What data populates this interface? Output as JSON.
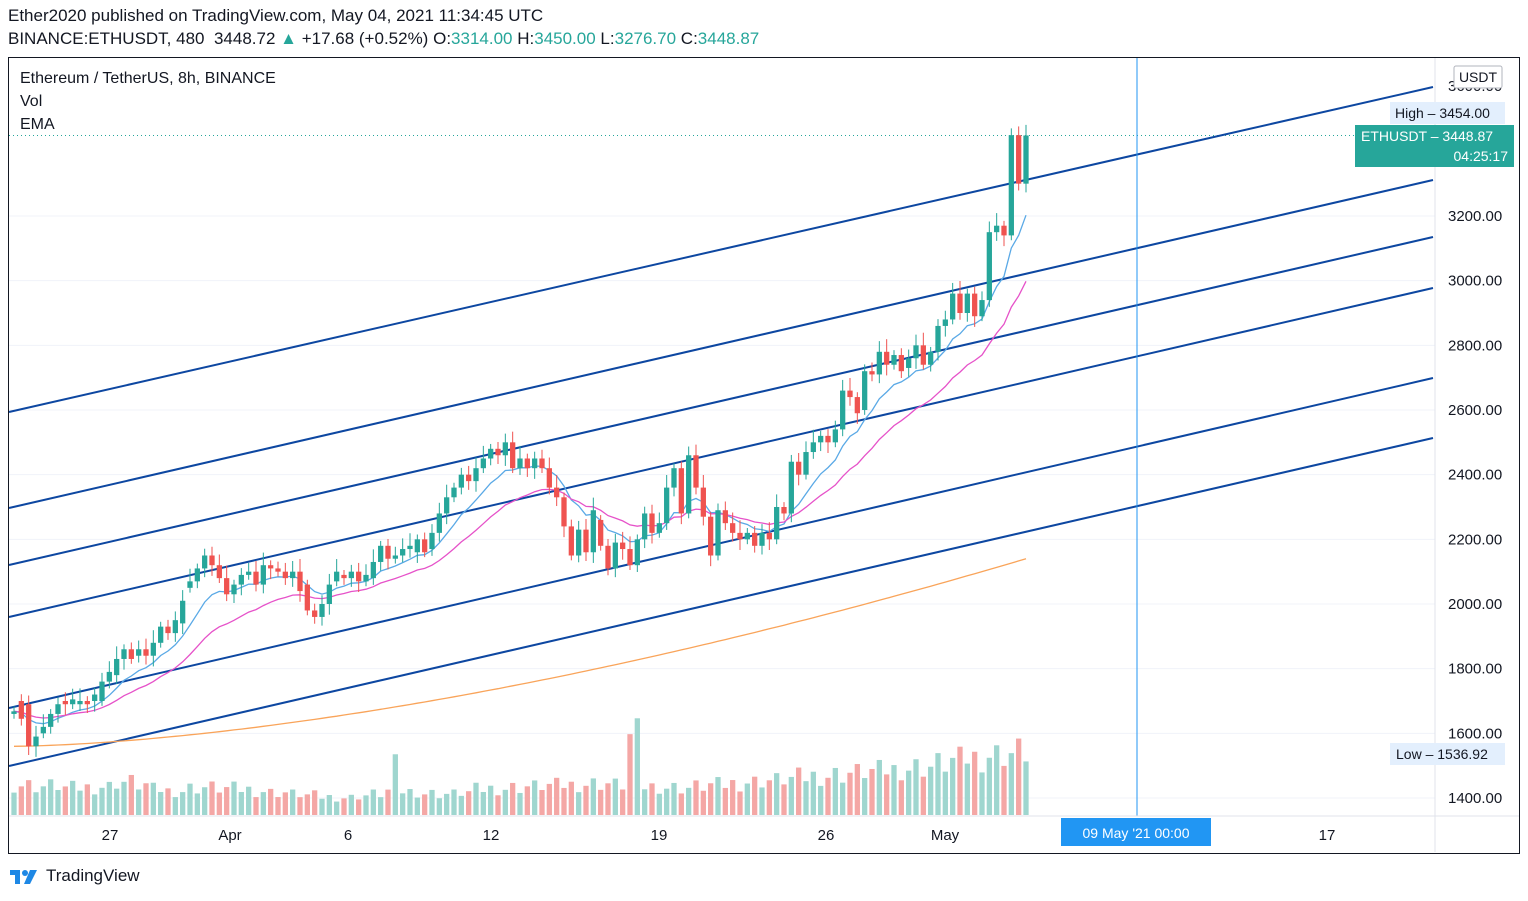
{
  "header": {
    "line1": "Ether2020 published on TradingView.com, May 04, 2021 11:34:45 UTC",
    "symbol": "BINANCE:ETHUSDT, 480",
    "last": "3448.72",
    "change": "+17.68 (+0.52%)",
    "o_label": "O:",
    "o_value": "3314.00",
    "h_label": "H:",
    "h_value": "3450.00",
    "l_label": "L:",
    "l_value": "3276.70",
    "c_label": "C:",
    "c_value": "3448.87"
  },
  "legend": {
    "title": "Ethereum / TetherUS, 8h, BINANCE",
    "vol": "Vol",
    "ema": "EMA"
  },
  "colors": {
    "up": "#26a69a",
    "down": "#ef5350",
    "vol_up": "#9fd6cf",
    "vol_down": "#f4a7a5",
    "channel": "#0d47a1",
    "ema_fast": "#5aa9e6",
    "ema_mid": "#e652c9",
    "ema_slow": "#f9a45a",
    "crosshair": "#2196f3",
    "last_price": "#26a69a"
  },
  "footer": {
    "brand": "TradingView",
    "icon": "tradingview-logo-icon"
  },
  "chart_data": {
    "type": "candlestick",
    "title": "Ethereum / TetherUS, 8h, BINANCE",
    "currency": "USDT",
    "y_ticks": [
      "1400.00",
      "1600.00",
      "1800.00",
      "2000.00",
      "2200.00",
      "2400.00",
      "2600.00",
      "2800.00",
      "3000.00",
      "3200.00"
    ],
    "x_ticks": [
      "27",
      "Apr",
      "6",
      "12",
      "19",
      "26",
      "May",
      "17"
    ],
    "ylim": [
      1360,
      3520
    ],
    "high_label": "High",
    "high_value": "3454.00",
    "low_label": "Low",
    "low_value": "1536.92",
    "last_label": "ETHUSDT",
    "last_value": "3448.87",
    "countdown": "04:25:17",
    "crosshair_label": "09 May '21   00:00",
    "price_points": [
      [
        1660,
        1668
      ],
      [
        1700,
        1645
      ],
      [
        1690,
        1560
      ],
      [
        1560,
        1590
      ],
      [
        1600,
        1620
      ],
      [
        1620,
        1660
      ],
      [
        1660,
        1690
      ],
      [
        1700,
        1690
      ],
      [
        1690,
        1705
      ],
      [
        1690,
        1700
      ],
      [
        1700,
        1690
      ],
      [
        1700,
        1720
      ],
      [
        1700,
        1760
      ],
      [
        1760,
        1790
      ],
      [
        1780,
        1830
      ],
      [
        1830,
        1860
      ],
      [
        1860,
        1830
      ],
      [
        1840,
        1860
      ],
      [
        1860,
        1840
      ],
      [
        1840,
        1880
      ],
      [
        1880,
        1930
      ],
      [
        1930,
        1910
      ],
      [
        1910,
        1950
      ],
      [
        1940,
        2010
      ],
      [
        2050,
        2070
      ],
      [
        2070,
        2110
      ],
      [
        2110,
        2150
      ],
      [
        2150,
        2120
      ],
      [
        2120,
        2080
      ],
      [
        2080,
        2030
      ],
      [
        2030,
        2060
      ],
      [
        2060,
        2090
      ],
      [
        2090,
        2100
      ],
      [
        2100,
        2060
      ],
      [
        2060,
        2120
      ],
      [
        2120,
        2110
      ],
      [
        2110,
        2100
      ],
      [
        2100,
        2080
      ],
      [
        2080,
        2100
      ],
      [
        2100,
        2040
      ],
      [
        2060,
        1980
      ],
      [
        1980,
        1960
      ],
      [
        1960,
        2000
      ],
      [
        2000,
        2060
      ],
      [
        2070,
        2100
      ],
      [
        2090,
        2080
      ],
      [
        2080,
        2100
      ],
      [
        2100,
        2070
      ],
      [
        2070,
        2090
      ],
      [
        2080,
        2130
      ],
      [
        2130,
        2180
      ],
      [
        2180,
        2140
      ],
      [
        2140,
        2150
      ],
      [
        2150,
        2170
      ],
      [
        2170,
        2180
      ],
      [
        2160,
        2200
      ],
      [
        2200,
        2160
      ],
      [
        2170,
        2220
      ],
      [
        2220,
        2280
      ],
      [
        2280,
        2330
      ],
      [
        2330,
        2360
      ],
      [
        2360,
        2400
      ],
      [
        2400,
        2380
      ],
      [
        2380,
        2420
      ],
      [
        2420,
        2450
      ],
      [
        2450,
        2480
      ],
      [
        2480,
        2460
      ],
      [
        2460,
        2500
      ],
      [
        2500,
        2420
      ],
      [
        2420,
        2450
      ],
      [
        2450,
        2420
      ],
      [
        2420,
        2450
      ],
      [
        2450,
        2420
      ],
      [
        2420,
        2360
      ],
      [
        2360,
        2330
      ],
      [
        2330,
        2240
      ],
      [
        2240,
        2150
      ],
      [
        2150,
        2230
      ],
      [
        2230,
        2160
      ],
      [
        2160,
        2290
      ],
      [
        2260,
        2180
      ],
      [
        2180,
        2110
      ],
      [
        2110,
        2190
      ],
      [
        2190,
        2170
      ],
      [
        2170,
        2120
      ],
      [
        2120,
        2200
      ],
      [
        2200,
        2280
      ],
      [
        2280,
        2220
      ],
      [
        2220,
        2250
      ],
      [
        2250,
        2360
      ],
      [
        2360,
        2420
      ],
      [
        2420,
        2280
      ],
      [
        2280,
        2460
      ],
      [
        2460,
        2360
      ],
      [
        2360,
        2270
      ],
      [
        2270,
        2150
      ],
      [
        2150,
        2290
      ],
      [
        2290,
        2250
      ],
      [
        2250,
        2220
      ],
      [
        2220,
        2200
      ],
      [
        2200,
        2220
      ],
      [
        2220,
        2180
      ],
      [
        2180,
        2220
      ],
      [
        2220,
        2200
      ],
      [
        2200,
        2300
      ],
      [
        2300,
        2280
      ],
      [
        2280,
        2440
      ],
      [
        2440,
        2400
      ],
      [
        2400,
        2470
      ],
      [
        2470,
        2500
      ],
      [
        2500,
        2520
      ],
      [
        2520,
        2500
      ],
      [
        2500,
        2540
      ],
      [
        2540,
        2660
      ],
      [
        2660,
        2640
      ],
      [
        2640,
        2590
      ],
      [
        2600,
        2720
      ],
      [
        2720,
        2710
      ],
      [
        2710,
        2780
      ],
      [
        2780,
        2740
      ],
      [
        2740,
        2770
      ],
      [
        2770,
        2720
      ],
      [
        2730,
        2760
      ],
      [
        2760,
        2800
      ],
      [
        2800,
        2740
      ],
      [
        2740,
        2780
      ],
      [
        2780,
        2860
      ],
      [
        2860,
        2880
      ],
      [
        2880,
        2960
      ],
      [
        2960,
        2900
      ],
      [
        2900,
        2960
      ],
      [
        2960,
        2890
      ],
      [
        2890,
        2940
      ],
      [
        2940,
        3150
      ],
      [
        3150,
        3170
      ],
      [
        3170,
        3140
      ],
      [
        3140,
        3450
      ],
      [
        3450,
        3300
      ],
      [
        3300,
        3449
      ]
    ],
    "volume_points": [
      1.0,
      0.95,
      0.98,
      0.9,
      0.92,
      0.95,
      1.1,
      1.0,
      0.85,
      0.8,
      0.9,
      0.92,
      0.88,
      0.85,
      0.8,
      0.75,
      0.7,
      0.65,
      0.6,
      0.58,
      0.65,
      0.7,
      0.8,
      0.78,
      0.72,
      0.7,
      0.75,
      0.85,
      0.88,
      0.92,
      0.95,
      0.98,
      1.0,
      1.02,
      1.05,
      1.0,
      0.98,
      0.95,
      0.92,
      0.9,
      0.95,
      1.0,
      1.05,
      1.1,
      1.15,
      1.2,
      1.25,
      1.3,
      1.35,
      1.4,
      1.45,
      1.5,
      1.55,
      1.6,
      1.7,
      1.8,
      1.9,
      2.0,
      2.05,
      2.1
    ],
    "ema_fast_note": "EMA lines drawn from computed averages"
  }
}
